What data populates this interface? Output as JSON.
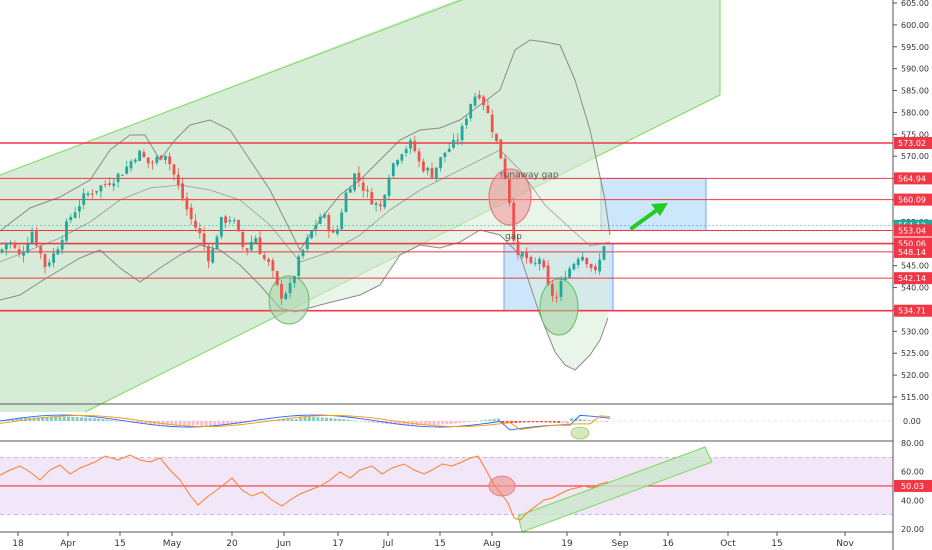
{
  "chart_data": {
    "type": "candlestick",
    "title": "",
    "main_pane": {
      "y_axis": {
        "range": [
          512,
          606
        ],
        "ticks": [
          "605.00",
          "600.00",
          "595.00",
          "590.00",
          "585.00",
          "580.00",
          "575.00",
          "570.00",
          "565.00",
          "560.00",
          "555.00",
          "550.00",
          "545.00",
          "540.00",
          "535.00",
          "530.00",
          "525.00",
          "520.00",
          "515.00"
        ],
        "tick_values": [
          605,
          600,
          595,
          590,
          585,
          580,
          575,
          570,
          565,
          560,
          555,
          550,
          545,
          540,
          535,
          530,
          525,
          520,
          515
        ]
      },
      "price_labels": [
        {
          "text": "573.02",
          "value": 573.02,
          "color": "#f23645"
        },
        {
          "text": "564.94",
          "value": 564.94,
          "color": "#f23645"
        },
        {
          "text": "560.09",
          "value": 560.09,
          "color": "#f23645"
        },
        {
          "text": "554.12",
          "value": 554.12,
          "color": "#26a69a"
        },
        {
          "text": "553.04",
          "value": 553.04,
          "color": "#f23645"
        },
        {
          "text": "550.06",
          "value": 550.06,
          "color": "#f23645"
        },
        {
          "text": "548.14",
          "value": 548.14,
          "color": "#f23645"
        },
        {
          "text": "542.14",
          "value": 542.14,
          "color": "#f23645"
        },
        {
          "text": "534.71",
          "value": 534.71,
          "color": "#f23645"
        }
      ],
      "annotations": [
        {
          "text": "runaway gap",
          "x_date": "Aug 1",
          "y": 566
        },
        {
          "text": "gap",
          "x_date": "Aug 1",
          "y": 552
        }
      ]
    },
    "x_axis": {
      "ticks": [
        "18",
        "Apr",
        "15",
        "May",
        "20",
        "Jun",
        "17",
        "Jul",
        "15",
        "Aug",
        "19",
        "Sep",
        "16",
        "Oct",
        "15",
        "Nov"
      ]
    },
    "macd_pane": {
      "range": [
        -4,
        4
      ],
      "ticks": [
        "0.00"
      ],
      "tick_values": [
        0
      ]
    },
    "rsi_pane": {
      "range": [
        18,
        84
      ],
      "ticks": [
        "80.00",
        "60.00",
        "40.00",
        "20.00"
      ],
      "tick_values": [
        80,
        60,
        40,
        20
      ],
      "current_label": {
        "text": "50.03",
        "value": 50.03
      }
    },
    "colors": {
      "up": "#26a69a",
      "down": "#ef5350",
      "level_line": "#f23645",
      "channel_fill": "#c8e6c9",
      "channel_line": "#7ed957",
      "bollinger": "#8a8a8a",
      "box_fill": "#bbdefb",
      "rsi_line": "#ff7f2a",
      "rsi_band": "#efe0f7",
      "macd_line": "#2962ff",
      "signal_line": "#ff9800",
      "arrow": "#22cc22"
    }
  }
}
